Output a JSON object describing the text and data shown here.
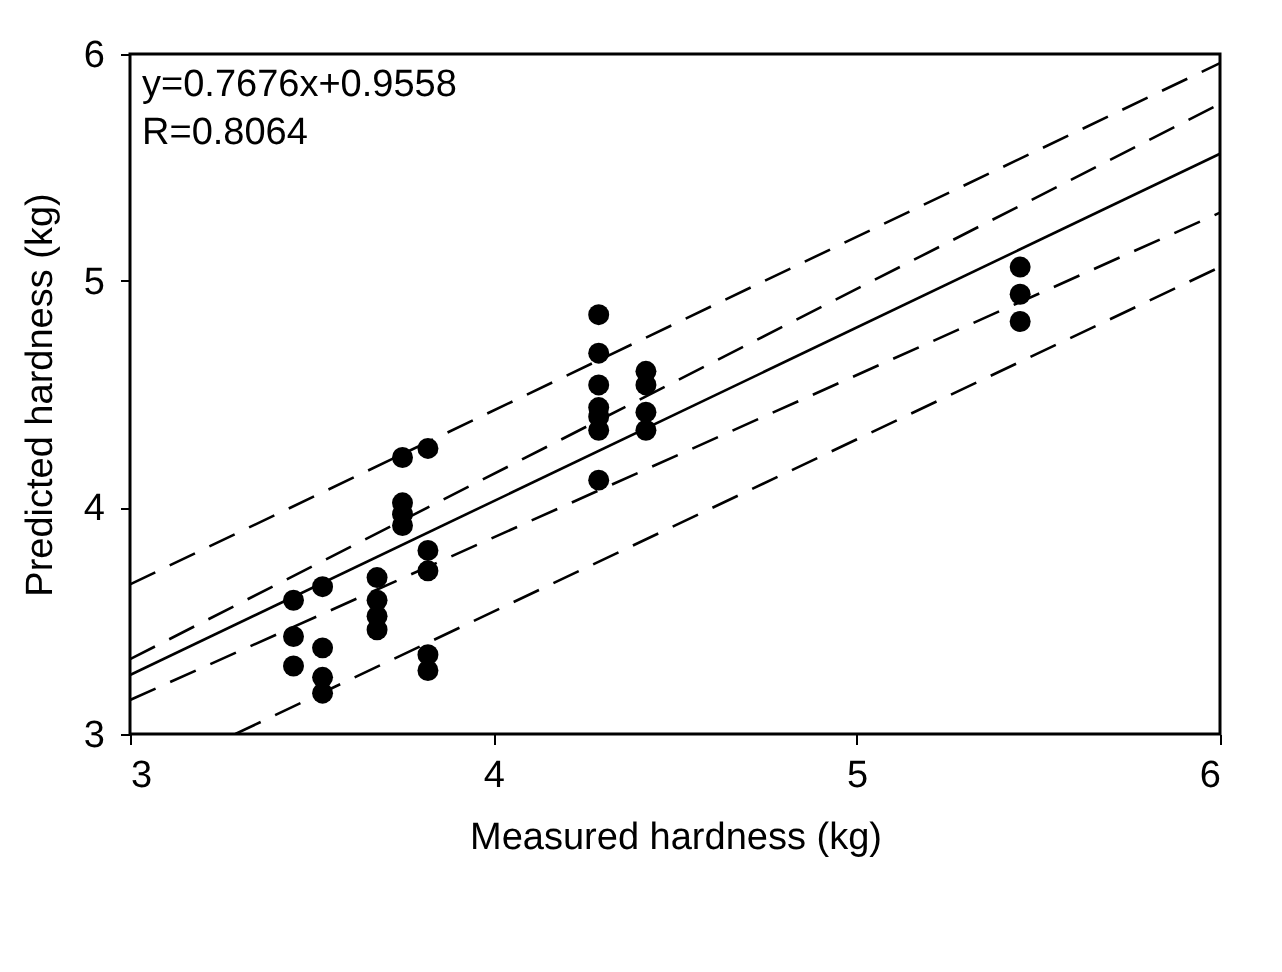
{
  "chart_data": {
    "type": "scatter",
    "xlabel": "Measured hardness (kg)",
    "ylabel": "Predicted hardness (kg)",
    "xlim": [
      3,
      6
    ],
    "ylim": [
      3,
      6
    ],
    "xticks": [
      3,
      4,
      5,
      6
    ],
    "yticks": [
      3,
      4,
      5,
      6
    ],
    "grid": false,
    "annotations": [
      "y=0.7676x+0.9558",
      "R=0.8064"
    ],
    "series": [
      {
        "color": "#000000",
        "marker": "circle",
        "x": [
          3.45,
          3.45,
          3.45,
          3.53,
          3.53,
          3.53,
          3.53,
          3.68,
          3.68,
          3.68,
          3.68,
          3.75,
          3.75,
          3.75,
          3.75,
          3.82,
          3.82,
          3.82,
          3.82,
          3.82,
          4.29,
          4.29,
          4.29,
          4.29,
          4.29,
          4.29,
          4.29,
          4.42,
          4.42,
          4.42,
          4.42,
          5.45,
          5.45,
          5.45
        ],
        "values": [
          3.59,
          3.43,
          3.3,
          3.65,
          3.38,
          3.25,
          3.18,
          3.69,
          3.59,
          3.52,
          3.46,
          4.22,
          4.02,
          3.97,
          3.92,
          4.26,
          3.81,
          3.72,
          3.35,
          3.28,
          4.85,
          4.68,
          4.54,
          4.44,
          4.4,
          4.34,
          4.12,
          4.6,
          4.54,
          4.42,
          4.34,
          5.06,
          4.94,
          4.82
        ]
      },
      {
        "type": "line",
        "color": "#000000",
        "line_style": "solid",
        "x": [
          3,
          6
        ],
        "values": [
          3.26,
          5.56
        ]
      },
      {
        "type": "line",
        "color": "#000000",
        "line_style": "dashed",
        "x": [
          3,
          6
        ],
        "values": [
          3.33,
          5.78
        ]
      },
      {
        "type": "line",
        "color": "#000000",
        "line_style": "dashed",
        "x": [
          3,
          6
        ],
        "values": [
          3.15,
          5.3
        ]
      },
      {
        "type": "line",
        "color": "#000000",
        "line_style": "dashed",
        "x": [
          3,
          6
        ],
        "values": [
          3.66,
          5.96
        ]
      },
      {
        "type": "line",
        "color": "#000000",
        "line_style": "dashed",
        "x": [
          3.29,
          6
        ],
        "values": [
          3,
          5.06
        ]
      }
    ]
  }
}
